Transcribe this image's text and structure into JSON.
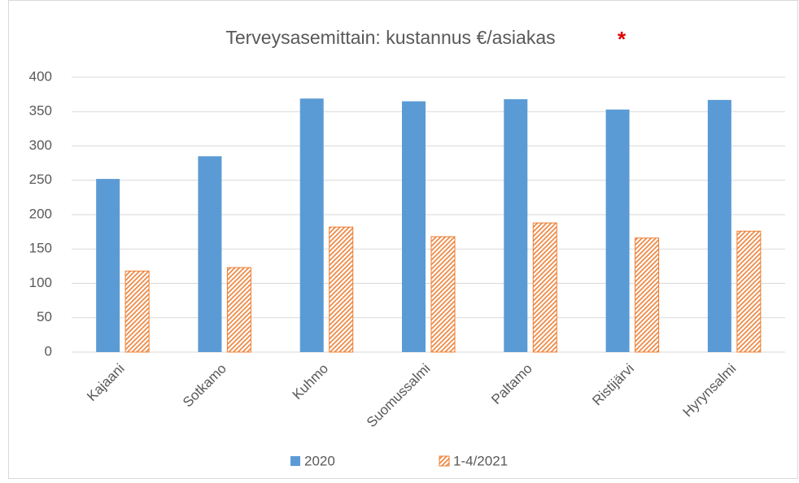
{
  "chart_data": {
    "type": "bar",
    "title": "Terveysasemittain: kustannus €/asiakas",
    "annotation": "*",
    "categories": [
      "Kajaani",
      "Sotkamo",
      "Kuhmo",
      "Suomussalmi",
      "Paltamo",
      "Ristijärvi",
      "Hyrynsalmi"
    ],
    "series": [
      {
        "name": "2020",
        "color": "#5b9bd5",
        "values": [
          252,
          285,
          369,
          365,
          368,
          353,
          367
        ]
      },
      {
        "name": "1-4/2021",
        "color": "#ed7d31",
        "hatched": true,
        "values": [
          118,
          123,
          182,
          168,
          188,
          166,
          176
        ]
      }
    ],
    "ylim": [
      0,
      400
    ],
    "yticks": [
      0,
      50,
      100,
      150,
      200,
      250,
      300,
      350,
      400
    ],
    "grid": true,
    "legend": "bottom"
  }
}
